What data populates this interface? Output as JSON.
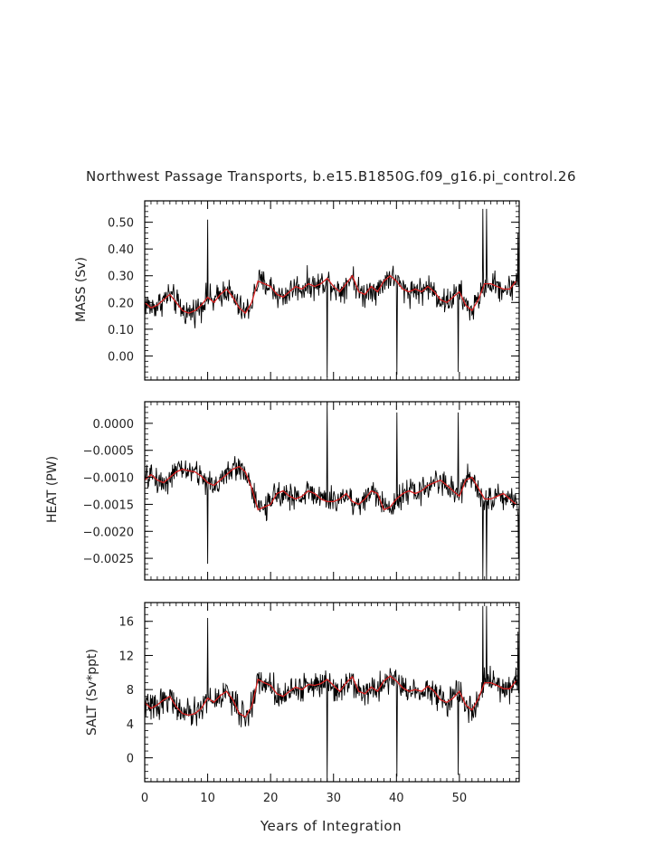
{
  "chart_data": {
    "type": "line",
    "title": "Northwest Passage Transports, b.e15.B1850G.f09_g16.pi_control.26",
    "xlabel": "Years of Integration",
    "xlim": [
      0,
      59.5
    ],
    "xticks": [
      0,
      10,
      20,
      30,
      40,
      50
    ],
    "legend": "none",
    "grid": false,
    "colors": {
      "raw": "#000000",
      "smooth": "#d62020"
    },
    "panels": [
      {
        "id": "mass",
        "ylabel": "MASS (Sv)",
        "ylim": [
          -0.09,
          0.58
        ],
        "yticks": [
          0.0,
          0.1,
          0.2,
          0.3,
          0.4,
          0.5
        ],
        "ytick_labels": [
          "0.00",
          "0.10",
          "0.20",
          "0.30",
          "0.40",
          "0.50"
        ],
        "smooth": {
          "x": [
            0,
            1,
            2,
            3,
            4,
            5,
            6,
            7,
            8,
            9,
            10,
            11,
            12,
            13,
            14,
            15,
            16,
            17,
            18,
            19,
            20,
            21,
            22,
            23,
            24,
            25,
            26,
            27,
            28,
            29,
            30,
            31,
            32,
            33,
            34,
            35,
            36,
            37,
            38,
            39,
            40,
            41,
            42,
            43,
            44,
            45,
            46,
            47,
            48,
            49,
            50,
            51,
            52,
            53,
            54,
            55,
            56,
            57,
            58,
            59
          ],
          "y": [
            0.2,
            0.18,
            0.19,
            0.21,
            0.23,
            0.2,
            0.17,
            0.16,
            0.17,
            0.19,
            0.22,
            0.2,
            0.23,
            0.25,
            0.22,
            0.18,
            0.16,
            0.2,
            0.28,
            0.27,
            0.26,
            0.23,
            0.22,
            0.24,
            0.26,
            0.25,
            0.27,
            0.26,
            0.27,
            0.29,
            0.26,
            0.24,
            0.27,
            0.3,
            0.24,
            0.23,
            0.26,
            0.24,
            0.28,
            0.3,
            0.28,
            0.25,
            0.24,
            0.25,
            0.24,
            0.26,
            0.24,
            0.21,
            0.2,
            0.22,
            0.24,
            0.19,
            0.17,
            0.21,
            0.27,
            0.27,
            0.26,
            0.25,
            0.25,
            0.28
          ]
        },
        "raw": {
          "x_step": 0.0833,
          "base": 0,
          "noise_amp": 0.075,
          "spikes": [
            {
              "x": 10.0,
              "y": 0.51
            },
            {
              "x": 29.0,
              "y": -0.08
            },
            {
              "x": 40.1,
              "y": -0.07
            },
            {
              "x": 49.8,
              "y": -0.06
            },
            {
              "x": 53.7,
              "y": 0.55
            },
            {
              "x": 54.3,
              "y": 0.55
            },
            {
              "x": 59.3,
              "y": 0.46
            }
          ]
        }
      },
      {
        "id": "heat",
        "ylabel": "HEAT (PW)",
        "ylim": [
          -0.0029,
          0.0004
        ],
        "yticks": [
          0.0,
          -0.0005,
          -0.001,
          -0.0015,
          -0.002,
          -0.0025
        ],
        "ytick_labels": [
          "0.0000",
          "−0.0005",
          "−0.0010",
          "−0.0015",
          "−0.0020",
          "−0.0025"
        ],
        "smooth": {
          "x": [
            0,
            1,
            2,
            3,
            4,
            5,
            6,
            7,
            8,
            9,
            10,
            11,
            12,
            13,
            14,
            15,
            16,
            17,
            18,
            19,
            20,
            21,
            22,
            23,
            24,
            25,
            26,
            27,
            28,
            29,
            30,
            31,
            32,
            33,
            34,
            35,
            36,
            37,
            38,
            39,
            40,
            41,
            42,
            43,
            44,
            45,
            46,
            47,
            48,
            49,
            50,
            51,
            52,
            53,
            54,
            55,
            56,
            57,
            58,
            59
          ],
          "y": [
            -0.00105,
            -0.00095,
            -0.00105,
            -0.0011,
            -0.001,
            -0.0009,
            -0.00085,
            -0.00088,
            -0.0009,
            -0.00098,
            -0.0011,
            -0.00115,
            -0.00105,
            -0.00095,
            -0.00085,
            -0.0008,
            -0.0009,
            -0.0012,
            -0.0016,
            -0.00155,
            -0.0015,
            -0.0013,
            -0.00125,
            -0.00135,
            -0.0014,
            -0.00135,
            -0.00125,
            -0.0013,
            -0.0014,
            -0.00145,
            -0.00145,
            -0.0014,
            -0.0013,
            -0.00145,
            -0.0015,
            -0.0014,
            -0.00125,
            -0.0013,
            -0.0016,
            -0.00155,
            -0.0014,
            -0.0013,
            -0.00125,
            -0.0013,
            -0.00125,
            -0.00115,
            -0.0011,
            -0.00105,
            -0.00115,
            -0.00125,
            -0.00135,
            -0.00105,
            -0.001,
            -0.0012,
            -0.0014,
            -0.0014,
            -0.00135,
            -0.0013,
            -0.0014,
            -0.0015
          ]
        },
        "raw": {
          "x_step": 0.0833,
          "base": 0,
          "noise_amp": 0.00035,
          "spikes": [
            {
              "x": 10.0,
              "y": -0.0026
            },
            {
              "x": 29.0,
              "y": 0.0004
            },
            {
              "x": 40.1,
              "y": 0.0002
            },
            {
              "x": 49.8,
              "y": 0.0002
            },
            {
              "x": 53.7,
              "y": -0.0029
            },
            {
              "x": 54.3,
              "y": -0.0029
            },
            {
              "x": 59.4,
              "y": -0.0025
            }
          ]
        }
      },
      {
        "id": "salt",
        "ylabel": "SALT (Sv*ppt)",
        "ylim": [
          -2.8,
          18.2
        ],
        "yticks": [
          0,
          4,
          8,
          12,
          16
        ],
        "ytick_labels": [
          "0",
          "4",
          "8",
          "12",
          "16"
        ],
        "smooth": {
          "x": [
            0,
            1,
            2,
            3,
            4,
            5,
            6,
            7,
            8,
            9,
            10,
            11,
            12,
            13,
            14,
            15,
            16,
            17,
            18,
            19,
            20,
            21,
            22,
            23,
            24,
            25,
            26,
            27,
            28,
            29,
            30,
            31,
            32,
            33,
            34,
            35,
            36,
            37,
            38,
            39,
            40,
            41,
            42,
            43,
            44,
            45,
            46,
            47,
            48,
            49,
            50,
            51,
            52,
            53,
            54,
            55,
            56,
            57,
            58,
            59
          ],
          "y": [
            6.5,
            5.8,
            6.2,
            6.8,
            7.2,
            6.0,
            5.2,
            5.0,
            5.2,
            5.8,
            7.0,
            6.5,
            7.3,
            7.8,
            6.8,
            5.2,
            4.8,
            6.0,
            9.2,
            8.8,
            8.5,
            7.5,
            7.2,
            7.8,
            8.3,
            8.0,
            8.6,
            8.5,
            8.7,
            9.2,
            8.5,
            7.8,
            8.8,
            9.5,
            7.8,
            7.5,
            8.3,
            7.8,
            9.0,
            9.6,
            9.0,
            8.2,
            7.8,
            8.0,
            7.8,
            8.4,
            7.8,
            6.8,
            6.5,
            7.0,
            7.8,
            6.2,
            5.6,
            6.9,
            8.8,
            8.8,
            8.5,
            8.1,
            8.1,
            9.0
          ]
        },
        "raw": {
          "x_step": 0.0833,
          "base": 0,
          "noise_amp": 2.4,
          "spikes": [
            {
              "x": 10.0,
              "y": 16.4
            },
            {
              "x": 29.0,
              "y": -2.8
            },
            {
              "x": 40.1,
              "y": -2.2
            },
            {
              "x": 49.8,
              "y": -2.0
            },
            {
              "x": 53.7,
              "y": 17.8
            },
            {
              "x": 54.3,
              "y": 17.8
            },
            {
              "x": 59.3,
              "y": 14.8
            }
          ]
        }
      }
    ]
  }
}
